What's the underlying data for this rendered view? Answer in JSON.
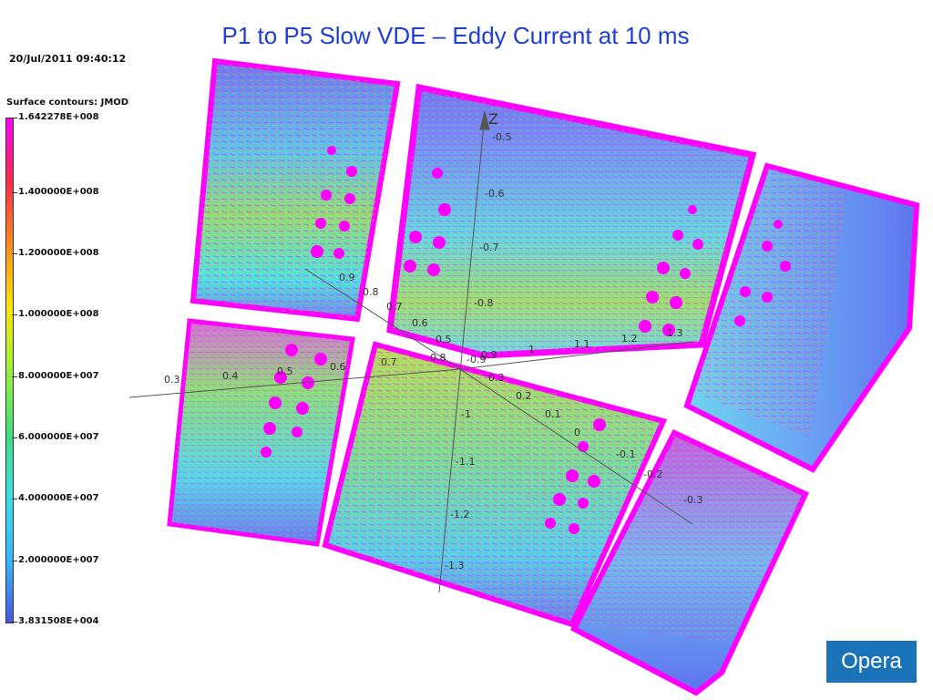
{
  "title": "P1 to P5 Slow VDE – Eddy Current at 10 ms",
  "timestamp": "20/Jul/2011 09:40:12",
  "legend": {
    "title": "Surface contours: JMOD",
    "labels": [
      "1.642278E+008",
      "1.400000E+008",
      "1.200000E+008",
      "1.000000E+008",
      "8.000000E+007",
      "6.000000E+007",
      "4.000000E+007",
      "2.000000E+007",
      "3.831508E+004"
    ],
    "values": [
      164227800,
      140000000,
      120000000,
      100000000,
      80000000,
      60000000,
      40000000,
      20000000,
      38315.08
    ],
    "min": 38315.08,
    "max": 164227800,
    "colors": [
      "#ff00ff",
      "#ff2a4a",
      "#ff8c1a",
      "#ffe600",
      "#9cf23a",
      "#3ee07a",
      "#37e0e8",
      "#35b8ff",
      "#4658e0"
    ]
  },
  "axes": {
    "z_label": "Z",
    "z_ticks": [
      "-0.5",
      "-0.6",
      "-0.7",
      "-0.8",
      "-0.9",
      "-1",
      "-1.1",
      "-1.2",
      "-1.3"
    ],
    "x_ticks": [
      "0.3",
      "0.4",
      "0.5",
      "0.6",
      "0.7",
      "0.8"
    ],
    "y_ticks": [
      "0.9",
      "0.8",
      "0.7",
      "0.6",
      "0.5"
    ],
    "r_ticks": [
      "0.9",
      "1",
      "1.1",
      "1.2",
      "1.3"
    ],
    "d_ticks": [
      "0.3",
      "0.2",
      "0.1",
      "0",
      "-0.1",
      "-0.2",
      "-0.3"
    ]
  },
  "logo": "Opera"
}
